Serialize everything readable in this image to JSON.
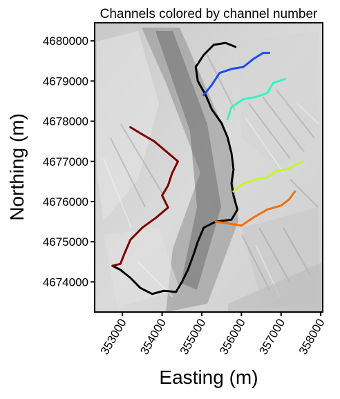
{
  "chart_data": {
    "type": "line",
    "title": "Channels colored by channel number",
    "xlabel": "Easting (m)",
    "ylabel": "Northing (m)",
    "xlim": [
      352300,
      358050
    ],
    "ylim": [
      4673250,
      4680450
    ],
    "xticks": [
      {
        "value": 353000,
        "label": "353000"
      },
      {
        "value": 354000,
        "label": "354000"
      },
      {
        "value": 355000,
        "label": "355000"
      },
      {
        "value": 356000,
        "label": "356000"
      },
      {
        "value": 357000,
        "label": "357000"
      },
      {
        "value": 358000,
        "label": "358000"
      }
    ],
    "yticks": [
      {
        "value": 4674000,
        "label": "4674000"
      },
      {
        "value": 4675000,
        "label": "4675000"
      },
      {
        "value": 4676000,
        "label": "4676000"
      },
      {
        "value": 4677000,
        "label": "4677000"
      },
      {
        "value": 4678000,
        "label": "4678000"
      },
      {
        "value": 4679000,
        "label": "4679000"
      },
      {
        "value": 4680000,
        "label": "4680000"
      }
    ],
    "background": "hillshade",
    "grid": false,
    "basin_outline": {
      "color": "#000000",
      "points": [
        [
          355850,
          4679850
        ],
        [
          355600,
          4679950
        ],
        [
          355300,
          4679900
        ],
        [
          355050,
          4679650
        ],
        [
          354850,
          4679350
        ],
        [
          354900,
          4679000
        ],
        [
          355100,
          4678650
        ],
        [
          355250,
          4678300
        ],
        [
          355500,
          4677950
        ],
        [
          355650,
          4677600
        ],
        [
          355750,
          4677200
        ],
        [
          355800,
          4676800
        ],
        [
          355750,
          4676450
        ],
        [
          355800,
          4676150
        ],
        [
          355900,
          4675800
        ],
        [
          355750,
          4675550
        ],
        [
          355350,
          4675500
        ],
        [
          355050,
          4675350
        ],
        [
          354900,
          4675000
        ],
        [
          354800,
          4674700
        ],
        [
          354650,
          4674300
        ],
        [
          354500,
          4674000
        ],
        [
          354350,
          4673750
        ],
        [
          354050,
          4673780
        ],
        [
          353750,
          4673700
        ],
        [
          353450,
          4673850
        ],
        [
          353200,
          4674100
        ],
        [
          352950,
          4674300
        ],
        [
          352750,
          4674400
        ]
      ]
    },
    "series": [
      {
        "color": "#800000",
        "points": [
          [
            353200,
            4677850
          ],
          [
            353450,
            4677700
          ],
          [
            353800,
            4677500
          ],
          [
            354100,
            4677250
          ],
          [
            354400,
            4677000
          ],
          [
            354250,
            4676700
          ],
          [
            354150,
            4676400
          ],
          [
            354000,
            4676150
          ],
          [
            354150,
            4675850
          ],
          [
            353850,
            4675600
          ],
          [
            353500,
            4675350
          ],
          [
            353200,
            4675050
          ],
          [
            353050,
            4674700
          ],
          [
            352950,
            4674450
          ],
          [
            352750,
            4674400
          ]
        ]
      },
      {
        "color": "#1a4cf0",
        "points": [
          [
            355050,
            4678650
          ],
          [
            355250,
            4678900
          ],
          [
            355450,
            4679200
          ],
          [
            355750,
            4679300
          ],
          [
            356050,
            4679350
          ],
          [
            356300,
            4679550
          ],
          [
            356550,
            4679700
          ],
          [
            356700,
            4679700
          ]
        ]
      },
      {
        "color": "#33f5c0",
        "points": [
          [
            355650,
            4678050
          ],
          [
            355750,
            4678350
          ],
          [
            356050,
            4678550
          ],
          [
            356350,
            4678600
          ],
          [
            356650,
            4678700
          ],
          [
            356800,
            4678950
          ],
          [
            357100,
            4679050
          ]
        ]
      },
      {
        "color": "#c8f52a",
        "points": [
          [
            355800,
            4676250
          ],
          [
            356050,
            4676450
          ],
          [
            356350,
            4676550
          ],
          [
            356650,
            4676600
          ],
          [
            356850,
            4676750
          ],
          [
            357150,
            4676800
          ],
          [
            357550,
            4677000
          ]
        ]
      },
      {
        "color": "#f07010",
        "points": [
          [
            355350,
            4675500
          ],
          [
            355700,
            4675450
          ],
          [
            356000,
            4675400
          ],
          [
            356300,
            4675600
          ],
          [
            356650,
            4675800
          ],
          [
            357000,
            4675900
          ],
          [
            357200,
            4676050
          ],
          [
            357350,
            4676250
          ]
        ]
      }
    ]
  }
}
